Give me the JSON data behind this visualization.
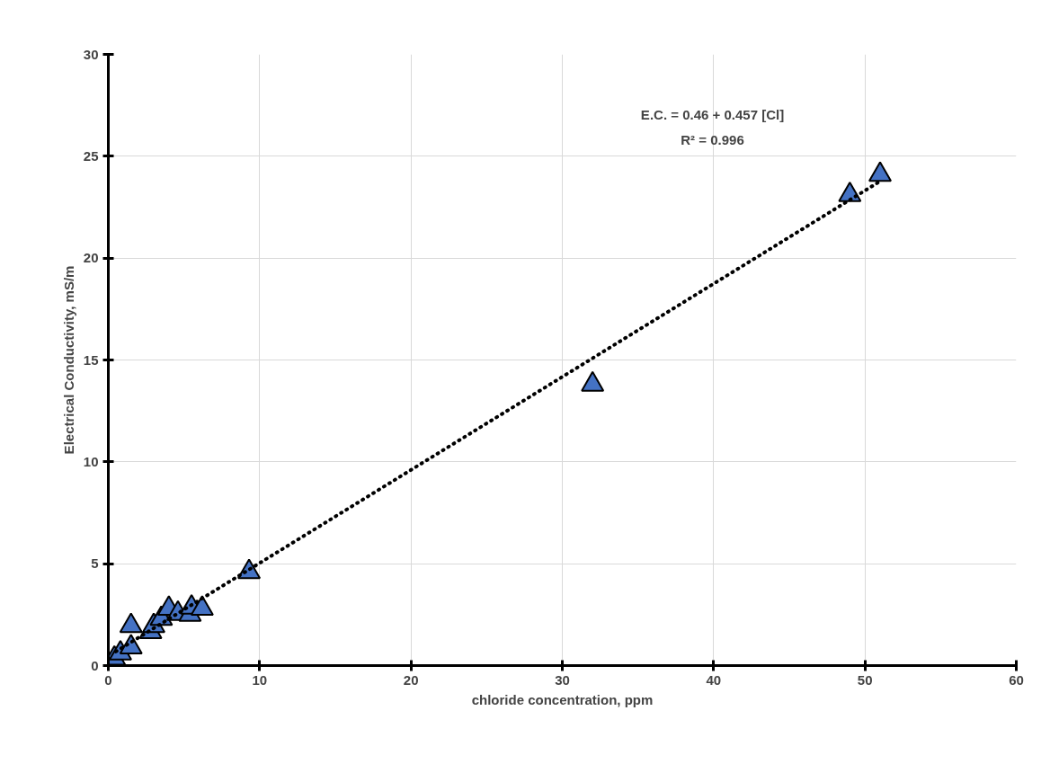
{
  "chart_data": {
    "type": "scatter",
    "xlabel": "chloride concentration, ppm",
    "ylabel": "Electrical Conductivity, mS/m",
    "xlim": [
      0,
      60
    ],
    "ylim": [
      0,
      30
    ],
    "xticks": [
      0,
      10,
      20,
      30,
      40,
      50,
      60
    ],
    "yticks": [
      0,
      5,
      10,
      15,
      20,
      25,
      30
    ],
    "grid": true,
    "series": [
      {
        "marker": "triangle",
        "color": "#4472c4",
        "x": [
          0.4,
          0.8,
          1.5,
          1.5,
          2.8,
          3.0,
          3.5,
          4.0,
          4.6,
          5.4,
          5.5,
          6.2,
          9.3,
          32,
          49,
          51
        ],
        "values": [
          0.35,
          0.6,
          0.9,
          1.95,
          1.65,
          1.95,
          2.3,
          2.8,
          2.55,
          2.5,
          2.85,
          2.8,
          4.6,
          13.8,
          23.1,
          24.1
        ]
      },
      {
        "type": "line",
        "line_style": "dotted",
        "color": "#000000",
        "x": [
          0.5,
          51
        ],
        "values": [
          0.69,
          23.77
        ]
      }
    ],
    "annotations": [
      "E.C. = 0.46 + 0.457 [Cl]",
      "R² = 0.996"
    ]
  }
}
